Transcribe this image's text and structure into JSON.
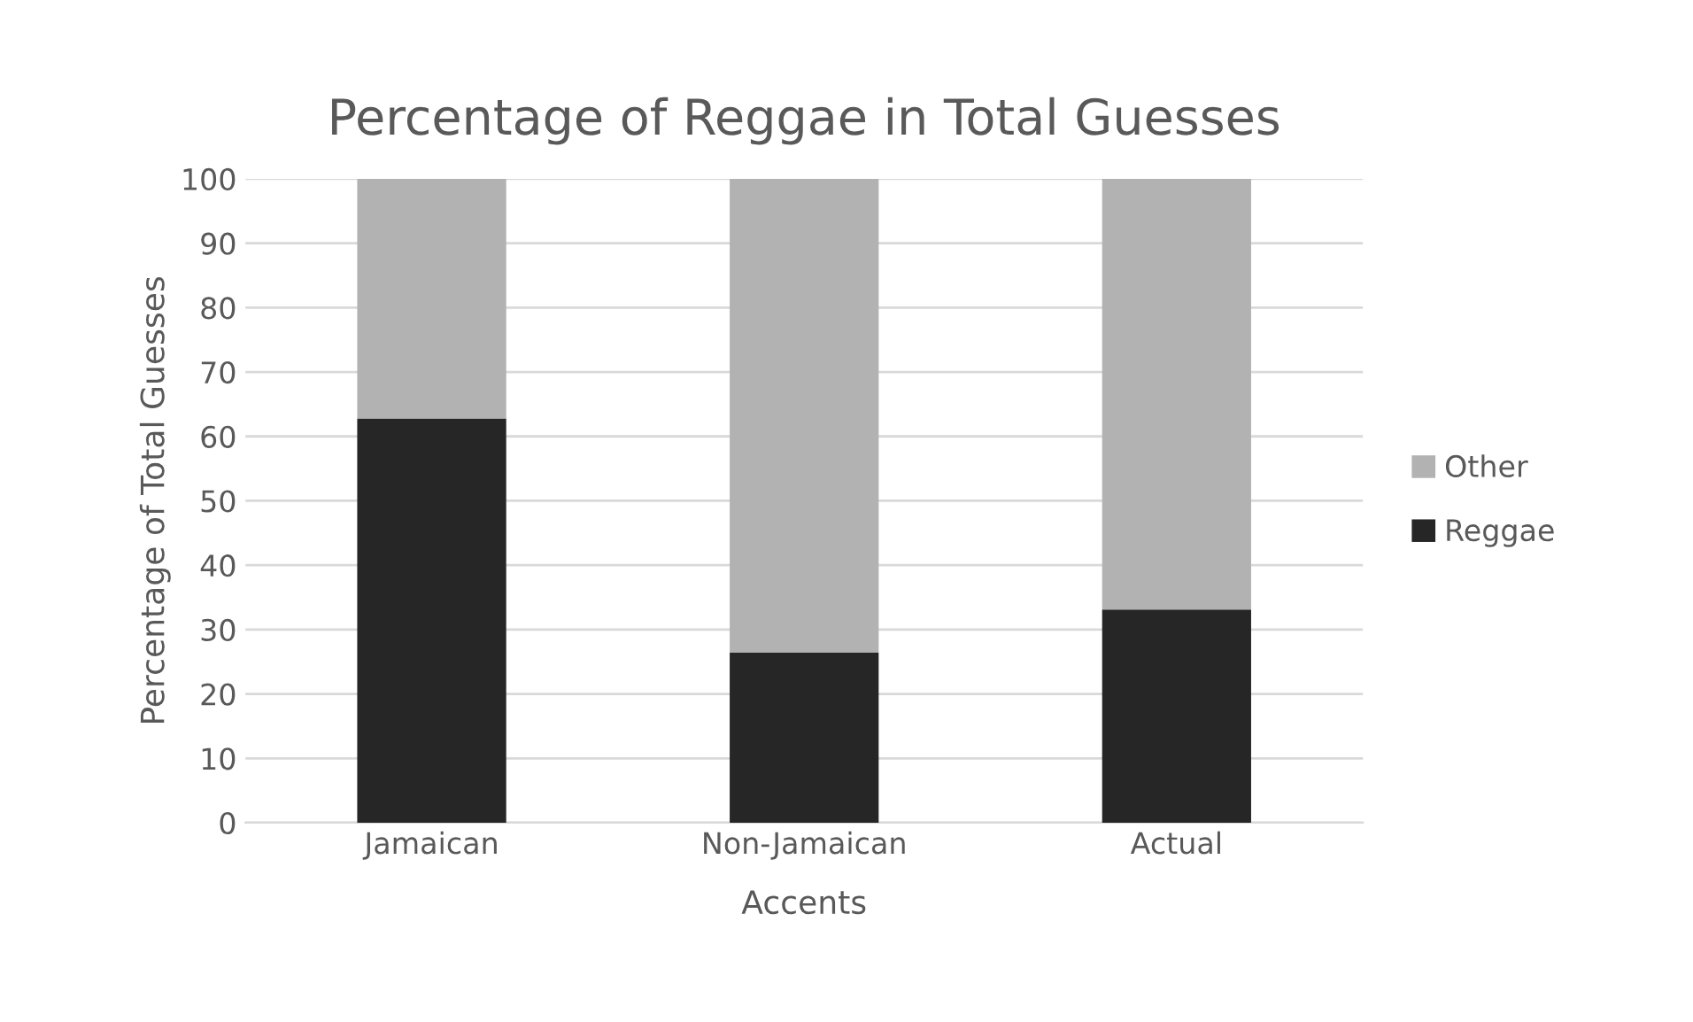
{
  "chart_data": {
    "type": "bar",
    "stacked": true,
    "title": "Percentage of Reggae in Total Guesses",
    "xlabel": "Accents",
    "ylabel": "Percentage of Total Guesses",
    "categories": [
      "Jamaican",
      "Non-Jamaican",
      "Actual"
    ],
    "series": [
      {
        "name": "Reggae",
        "color": "#262626",
        "values": [
          62.8,
          26.4,
          33.1
        ]
      },
      {
        "name": "Other",
        "color": "#b2b2b2",
        "values": [
          37.2,
          73.6,
          66.9
        ]
      }
    ],
    "ylim": [
      0,
      100
    ],
    "yticks": [
      0,
      10,
      20,
      30,
      40,
      50,
      60,
      70,
      80,
      90,
      100
    ],
    "grid": "y",
    "legend": "right"
  }
}
